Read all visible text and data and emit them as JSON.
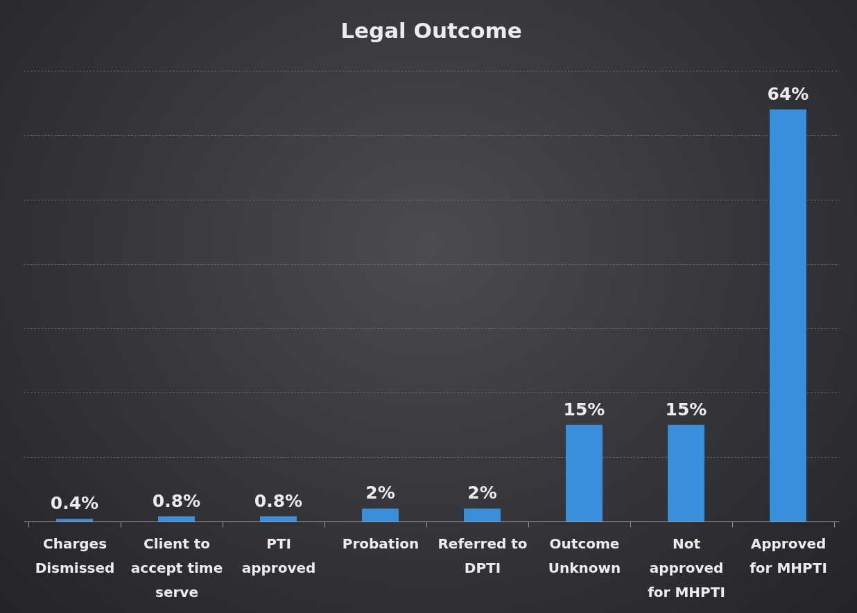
{
  "chart_data": {
    "type": "bar",
    "title": "Legal Outcome",
    "categories": [
      "Charges Dismissed",
      "Client to accept time serve",
      "PTI approved",
      "Probation",
      "Referred to DPTI",
      "Outcome Unknown",
      "Not approved for MHPTI",
      "Approved for MHPTI"
    ],
    "values": [
      0.4,
      0.8,
      0.8,
      2,
      2,
      15,
      15,
      64
    ],
    "value_labels": [
      "0.4%",
      "0.8%",
      "0.8%",
      "2%",
      "2%",
      "15%",
      "15%",
      "64%"
    ],
    "color": "#3a8fdc",
    "ylim": [
      0,
      70
    ],
    "yticks": [
      {
        "value": 0,
        "label": null
      },
      {
        "value": 10,
        "label": null
      },
      {
        "value": 20,
        "label": null
      },
      {
        "value": 30,
        "label": null
      },
      {
        "value": 40,
        "label": null
      },
      {
        "value": 50,
        "label": null
      },
      {
        "value": 60,
        "label": null
      },
      {
        "value": 70,
        "label": null
      }
    ],
    "grid": "y",
    "tick_labels": "x"
  }
}
